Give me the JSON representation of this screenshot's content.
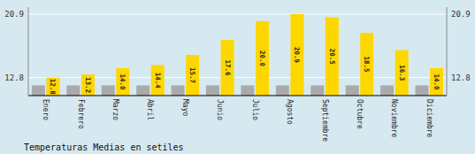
{
  "chart_data": {
    "type": "bar",
    "title": "Temperaturas Medias en setiles",
    "categories": [
      "Enero",
      "Febrero",
      "Marzo",
      "Abril",
      "Mayo",
      "Junio",
      "Julio",
      "Agosto",
      "Septiembre",
      "Octubre",
      "Noviembre",
      "Diciembre"
    ],
    "series": [
      {
        "color": "#AAAAAA",
        "values": [
          11.8,
          11.8,
          11.8,
          11.8,
          11.8,
          11.8,
          11.8,
          11.8,
          11.8,
          11.8,
          11.8,
          11.8
        ]
      },
      {
        "color": "#FFD700",
        "values": [
          12.8,
          13.2,
          14.0,
          14.4,
          15.7,
          17.6,
          20.0,
          20.9,
          20.5,
          18.5,
          16.3,
          14.0
        ],
        "value_labels": [
          "12.8",
          "13.2",
          "14.0",
          "14.4",
          "15.7",
          "17.6",
          "20.0",
          "20.9",
          "20.5",
          "18.5",
          "16.3",
          "14.0"
        ],
        "data_labels": true
      }
    ],
    "ylim": [
      10.5,
      21.8
    ],
    "yticks": [
      12.8,
      20.9
    ],
    "grid": true
  }
}
